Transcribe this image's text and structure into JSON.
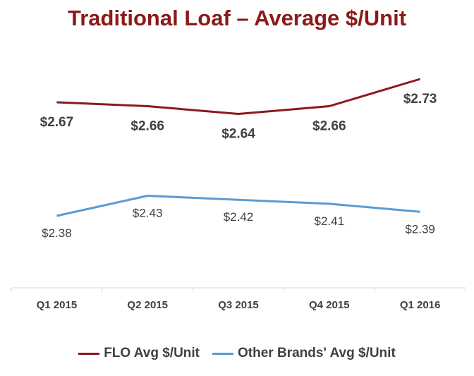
{
  "chart_data": {
    "type": "line",
    "title": "Traditional Loaf – Average $/Unit",
    "categories": [
      "Q1 2015",
      "Q2 2015",
      "Q3 2015",
      "Q4 2015",
      "Q1 2016"
    ],
    "series": [
      {
        "name": "FLO Avg $/Unit",
        "values": [
          2.67,
          2.66,
          2.64,
          2.66,
          2.73
        ],
        "labels": [
          "$2.67",
          "$2.66",
          "$2.64",
          "$2.66",
          "$2.73"
        ],
        "color": "#8B1A1A"
      },
      {
        "name": "Other Brands' Avg $/Unit",
        "values": [
          2.38,
          2.43,
          2.42,
          2.41,
          2.39
        ],
        "labels": [
          "$2.38",
          "$2.43",
          "$2.42",
          "$2.41",
          "$2.39"
        ],
        "color": "#5B9BD5"
      }
    ],
    "legend_position": "bottom",
    "grid": false
  }
}
